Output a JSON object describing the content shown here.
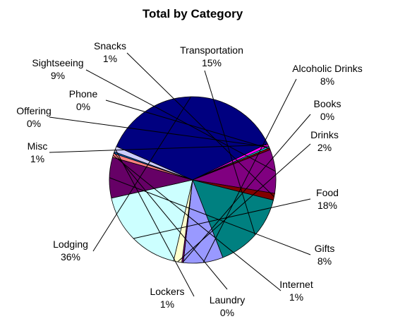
{
  "chart_data": {
    "type": "pie",
    "title": "Total by Category",
    "slices": [
      {
        "name": "Transportation",
        "value": 15.2,
        "pct_label": "15%",
        "color": "#008080"
      },
      {
        "name": "Alcoholic Drinks",
        "value": 7.7,
        "pct_label": "8%",
        "color": "#9999FF"
      },
      {
        "name": "Books",
        "value": 0.3,
        "pct_label": "0%",
        "color": "#800080"
      },
      {
        "name": "Drinks",
        "value": 1.6,
        "pct_label": "2%",
        "color": "#FFFFCC"
      },
      {
        "name": "Food",
        "value": 17.8,
        "pct_label": "18%",
        "color": "#CCFFFF"
      },
      {
        "name": "Gifts",
        "value": 7.9,
        "pct_label": "8%",
        "color": "#660066"
      },
      {
        "name": "Internet",
        "value": 0.8,
        "pct_label": "1%",
        "color": "#FF8080"
      },
      {
        "name": "Laundry",
        "value": 0.3,
        "pct_label": "0%",
        "color": "#0066CC"
      },
      {
        "name": "Lockers",
        "value": 1.1,
        "pct_label": "1%",
        "color": "#CCCCFF"
      },
      {
        "name": "Lodging",
        "value": 36.2,
        "pct_label": "36%",
        "color": "#000080"
      },
      {
        "name": "Misc",
        "value": 0.6,
        "pct_label": "1%",
        "color": "#FF00FF"
      },
      {
        "name": "Offering",
        "value": 0.3,
        "pct_label": "0%",
        "color": "#00FFFF"
      },
      {
        "name": "Phone",
        "value": 0.4,
        "pct_label": "0%",
        "color": "#800000"
      },
      {
        "name": "Sightseeing",
        "value": 8.5,
        "pct_label": "9%",
        "color": "#800080"
      },
      {
        "name": "Snacks",
        "value": 1.3,
        "pct_label": "1%",
        "color": "#800000"
      }
    ]
  }
}
